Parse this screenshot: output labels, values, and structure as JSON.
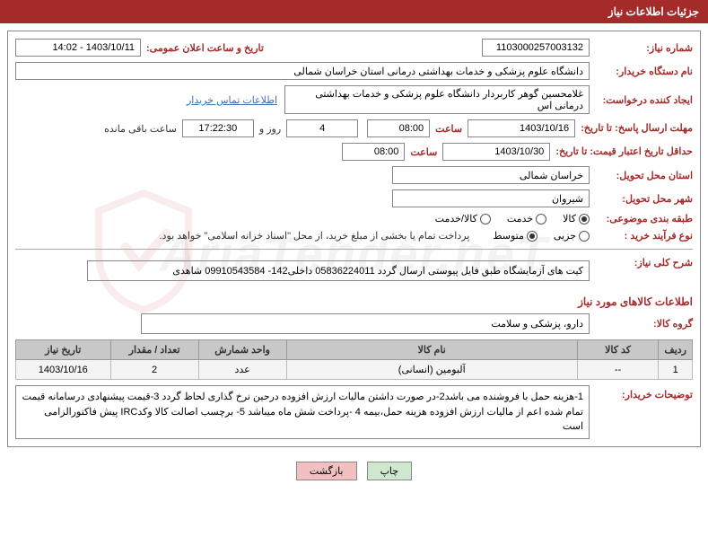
{
  "header": {
    "title": "جزئیات اطلاعات نیاز"
  },
  "need": {
    "number_label": "شماره نیاز:",
    "number": "1103000257003132",
    "announce_date_label": "تاریخ و ساعت اعلان عمومی:",
    "announce_date": "1403/10/11 - 14:02"
  },
  "buyer_org": {
    "label": "نام دستگاه خریدار:",
    "value": "دانشگاه علوم پزشکی و خدمات بهداشتی درمانی استان خراسان شمالی"
  },
  "requester": {
    "label": "ایجاد کننده درخواست:",
    "value": "غلامحسین گوهر کاربردار دانشگاه علوم پزشکی و خدمات بهداشتی درمانی اس",
    "contact_link": "اطلاعات تماس خریدار"
  },
  "deadline": {
    "label": "مهلت ارسال پاسخ: تا تاریخ:",
    "date": "1403/10/16",
    "time_label": "ساعت",
    "time": "08:00",
    "days": "4",
    "days_suffix": "روز و",
    "remain_time": "17:22:30",
    "remain_label": "ساعت باقی مانده"
  },
  "validity": {
    "label": "حداقل تاریخ اعتبار قیمت: تا تاریخ:",
    "date": "1403/10/30",
    "time_label": "ساعت",
    "time": "08:00"
  },
  "delivery_province": {
    "label": "استان محل تحویل:",
    "value": "خراسان شمالی"
  },
  "delivery_city": {
    "label": "شهر محل تحویل:",
    "value": "شیروان"
  },
  "grouping": {
    "label": "طبقه بندی موضوعی:",
    "options": [
      {
        "label": "کالا",
        "checked": true
      },
      {
        "label": "خدمت",
        "checked": false
      },
      {
        "label": "کالا/خدمت",
        "checked": false
      }
    ]
  },
  "process": {
    "label": "نوع فرآیند خرید :",
    "options": [
      {
        "label": "جزیی",
        "checked": false
      },
      {
        "label": "متوسط",
        "checked": true
      }
    ],
    "note": "پرداخت تمام یا بخشی از مبلغ خرید، از محل \"اسناد خزانه اسلامی\" خواهد بود."
  },
  "summary": {
    "label": "شرح کلی نیاز:",
    "text": "کیت های آزمایشگاه طبق فایل پیوستی ارسال گردد 05836224011 داخلی142- 09910543584 شاهدی"
  },
  "goods_section_title": "اطلاعات کالاهای مورد نیاز",
  "goods_group": {
    "label": "گروه کالا:",
    "value": "دارو، پزشکی و سلامت"
  },
  "table": {
    "headers": [
      "ردیف",
      "کد کالا",
      "نام کالا",
      "واحد شمارش",
      "تعداد / مقدار",
      "تاریخ نیاز"
    ],
    "rows": [
      [
        "1",
        "--",
        "آلبومین (انسانی)",
        "عدد",
        "2",
        "1403/10/16"
      ]
    ]
  },
  "buyer_notes": {
    "label": "توضیحات خریدار:",
    "text": "1-هزینه حمل با فروشنده می باشد2-در صورت داشتن مالیات ارزش افزوده درحین نرخ گذاری لحاظ گردد 3-قیمت پیشنهادی درسامانه قیمت تمام شده اعم از مالیات ارزش افزوده هزینه حمل،بیمه  4 -پرداخت شش ماه میباشد 5- برچسب اصالت کالا وکدIRC پیش فاکتورالزامی است"
  },
  "buttons": {
    "print": "چاپ",
    "back": "بازگشت"
  },
  "watermark": {
    "text": "AriaTender.neT"
  },
  "colors": {
    "brand": "#a52a2a",
    "border": "#888",
    "th_bg": "#c8c8c8",
    "td_bg": "#f4f4f4",
    "link": "#3b6fb6"
  }
}
